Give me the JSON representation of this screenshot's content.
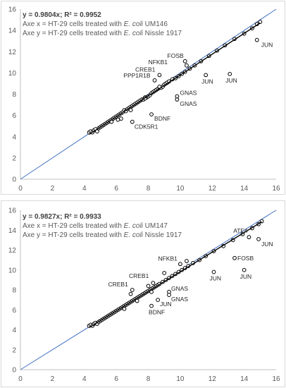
{
  "chart_data": [
    {
      "type": "scatter",
      "equation": "y = 0.9804x; R² = 0.9952",
      "axis_x_note_prefix": "Axe x = HT-29 cells treated with ",
      "axis_x_note_italic": "E. coli",
      "axis_x_note_suffix": " UM146",
      "axis_y_note_prefix": "Axe y = HT-29 cells treated with ",
      "axis_y_note_italic": "E. coli",
      "axis_y_note_suffix": " Nissle 1917",
      "xlim": [
        0,
        16
      ],
      "ylim": [
        0,
        16
      ],
      "xticks": [
        "0",
        "2",
        "4",
        "6",
        "8",
        "10",
        "12",
        "14",
        "16"
      ],
      "yticks": [
        "0",
        "2",
        "4",
        "6",
        "8",
        "10",
        "12",
        "14",
        "16"
      ],
      "identity_line": true,
      "trendline_slope": 0.9804,
      "grid": false,
      "points": [
        [
          4.3,
          4.4
        ],
        [
          4.4,
          4.5
        ],
        [
          4.5,
          4.4
        ],
        [
          4.6,
          4.6
        ],
        [
          4.7,
          4.7
        ],
        [
          4.8,
          4.5
        ],
        [
          4.9,
          4.8
        ],
        [
          5.0,
          4.9
        ],
        [
          5.1,
          5.0
        ],
        [
          5.2,
          5.1
        ],
        [
          5.3,
          5.2
        ],
        [
          5.4,
          5.3
        ],
        [
          5.5,
          5.4
        ],
        [
          5.6,
          5.5
        ],
        [
          5.7,
          5.6
        ],
        [
          5.8,
          5.7
        ],
        [
          5.9,
          5.8
        ],
        [
          6.0,
          5.9
        ],
        [
          6.1,
          6.0
        ],
        [
          6.2,
          6.1
        ],
        [
          6.3,
          6.2
        ],
        [
          6.4,
          6.3
        ],
        [
          6.5,
          6.5
        ],
        [
          6.6,
          6.4
        ],
        [
          6.7,
          6.6
        ],
        [
          6.8,
          6.7
        ],
        [
          6.9,
          6.8
        ],
        [
          7.0,
          6.9
        ],
        [
          7.1,
          7.0
        ],
        [
          7.2,
          7.1
        ],
        [
          7.3,
          7.2
        ],
        [
          7.4,
          7.3
        ],
        [
          7.5,
          7.4
        ],
        [
          7.6,
          7.5
        ],
        [
          7.7,
          7.5
        ],
        [
          7.8,
          7.7
        ],
        [
          7.9,
          7.7
        ],
        [
          8.0,
          7.8
        ],
        [
          8.1,
          7.9
        ],
        [
          8.2,
          8.1
        ],
        [
          8.3,
          8.2
        ],
        [
          8.4,
          8.3
        ],
        [
          8.5,
          8.4
        ],
        [
          8.6,
          8.5
        ],
        [
          8.7,
          8.6
        ],
        [
          8.8,
          8.6
        ],
        [
          8.9,
          8.7
        ],
        [
          9.0,
          8.9
        ],
        [
          9.1,
          9.0
        ],
        [
          9.2,
          9.1
        ],
        [
          9.3,
          9.2
        ],
        [
          9.5,
          9.4
        ],
        [
          9.7,
          9.5
        ],
        [
          9.9,
          9.7
        ],
        [
          10.1,
          9.9
        ],
        [
          10.3,
          10.1
        ],
        [
          10.6,
          10.4
        ],
        [
          10.9,
          10.7
        ],
        [
          11.3,
          11.1
        ],
        [
          11.8,
          11.6
        ],
        [
          12.3,
          12.1
        ],
        [
          12.8,
          12.6
        ],
        [
          13.4,
          13.2
        ],
        [
          14.0,
          13.7
        ],
        [
          14.5,
          14.2
        ],
        [
          14.8,
          14.6
        ],
        [
          15.0,
          14.8
        ],
        [
          6.3,
          5.7
        ],
        [
          5.7,
          5.4
        ],
        [
          7.8,
          7.6
        ],
        [
          8.7,
          8.7
        ],
        [
          6.9,
          6.5
        ],
        [
          6.1,
          5.6
        ],
        [
          10.4,
          10.7
        ],
        [
          8.2,
          6.1
        ],
        [
          7.0,
          5.4
        ],
        [
          8.4,
          9.3
        ],
        [
          8.7,
          9.8
        ],
        [
          10.3,
          11.1
        ],
        [
          9.8,
          7.5
        ],
        [
          9.8,
          7.8
        ],
        [
          11.6,
          9.8
        ],
        [
          13.1,
          9.9
        ],
        [
          14.8,
          13.1
        ]
      ],
      "labels": [
        {
          "text": "FOSB",
          "x": 10.3,
          "y": 11.1
        },
        {
          "text": "NFKB1",
          "x": 9.3,
          "y": 10.5
        },
        {
          "text": "JUN",
          "x": 11.6,
          "y": 9.8
        },
        {
          "text": "JUN",
          "x": 13.1,
          "y": 9.9
        },
        {
          "text": "JUN",
          "x": 14.8,
          "y": 13.1
        },
        {
          "text": "CREB1",
          "x": 8.7,
          "y": 9.8
        },
        {
          "text": "PPP1R1B",
          "x": 8.4,
          "y": 9.3
        },
        {
          "text": "GNAS",
          "x": 9.8,
          "y": 7.8
        },
        {
          "text": "GNAS",
          "x": 9.8,
          "y": 7.5
        },
        {
          "text": "BDNF",
          "x": 8.2,
          "y": 6.1
        },
        {
          "text": "CDK5R1",
          "x": 7.0,
          "y": 5.4
        }
      ]
    },
    {
      "type": "scatter",
      "equation": "y = 0.9827x; R² = 0.9933",
      "axis_x_note_prefix": "Axe x = HT-29 cells treated with ",
      "axis_x_note_italic": "E. coli",
      "axis_x_note_suffix": " UM147",
      "axis_y_note_prefix": "Axe y = HT-29 cells treated with ",
      "axis_y_note_italic": "E. coli",
      "axis_y_note_suffix": " Nissle 1917",
      "xlim": [
        0,
        16
      ],
      "ylim": [
        0,
        16
      ],
      "xticks": [
        "0",
        "2",
        "4",
        "6",
        "8",
        "10",
        "12",
        "14",
        "16"
      ],
      "yticks": [
        "0",
        "2",
        "4",
        "6",
        "8",
        "10",
        "12",
        "14",
        "16"
      ],
      "identity_line": true,
      "trendline_slope": 0.9827,
      "grid": false,
      "points": [
        [
          4.3,
          4.4
        ],
        [
          4.4,
          4.5
        ],
        [
          4.5,
          4.4
        ],
        [
          4.6,
          4.6
        ],
        [
          4.7,
          4.7
        ],
        [
          4.8,
          4.6
        ],
        [
          4.9,
          4.8
        ],
        [
          5.0,
          4.9
        ],
        [
          5.1,
          5.0
        ],
        [
          5.2,
          5.1
        ],
        [
          5.3,
          5.2
        ],
        [
          5.4,
          5.3
        ],
        [
          5.5,
          5.4
        ],
        [
          5.6,
          5.5
        ],
        [
          5.7,
          5.6
        ],
        [
          5.8,
          5.7
        ],
        [
          5.9,
          5.8
        ],
        [
          6.0,
          5.9
        ],
        [
          6.1,
          6.0
        ],
        [
          6.2,
          6.1
        ],
        [
          6.3,
          6.2
        ],
        [
          6.4,
          6.3
        ],
        [
          6.5,
          6.4
        ],
        [
          6.6,
          6.5
        ],
        [
          6.7,
          6.6
        ],
        [
          6.8,
          6.7
        ],
        [
          6.9,
          6.8
        ],
        [
          7.0,
          6.9
        ],
        [
          7.1,
          7.0
        ],
        [
          7.2,
          7.1
        ],
        [
          7.3,
          7.2
        ],
        [
          7.4,
          7.3
        ],
        [
          7.5,
          7.4
        ],
        [
          7.6,
          7.5
        ],
        [
          7.7,
          7.6
        ],
        [
          7.8,
          7.7
        ],
        [
          7.9,
          7.8
        ],
        [
          8.0,
          7.9
        ],
        [
          8.1,
          8.0
        ],
        [
          8.2,
          8.1
        ],
        [
          8.3,
          8.2
        ],
        [
          8.4,
          8.3
        ],
        [
          8.5,
          8.4
        ],
        [
          8.6,
          8.5
        ],
        [
          8.7,
          8.6
        ],
        [
          8.9,
          8.8
        ],
        [
          9.1,
          9.0
        ],
        [
          9.3,
          9.2
        ],
        [
          9.5,
          9.4
        ],
        [
          9.7,
          9.6
        ],
        [
          9.9,
          9.8
        ],
        [
          10.1,
          10.0
        ],
        [
          10.3,
          10.2
        ],
        [
          10.5,
          10.4
        ],
        [
          10.8,
          10.7
        ],
        [
          11.2,
          11.0
        ],
        [
          11.6,
          11.4
        ],
        [
          12.1,
          11.9
        ],
        [
          12.7,
          12.4
        ],
        [
          13.3,
          13.0
        ],
        [
          13.9,
          13.6
        ],
        [
          14.5,
          14.2
        ],
        [
          14.9,
          14.6
        ],
        [
          15.1,
          14.9
        ],
        [
          6.5,
          6.1
        ],
        [
          7.3,
          6.9
        ],
        [
          8.3,
          8.7
        ],
        [
          8.0,
          8.4
        ],
        [
          9.0,
          9.7
        ],
        [
          10.0,
          10.6
        ],
        [
          7.0,
          8.0
        ],
        [
          6.9,
          7.6
        ],
        [
          8.2,
          6.4
        ],
        [
          8.2,
          7.8
        ],
        [
          8.6,
          7.0
        ],
        [
          9.3,
          7.8
        ],
        [
          9.3,
          7.5
        ],
        [
          12.1,
          9.8
        ],
        [
          13.4,
          11.2
        ],
        [
          14.0,
          10.0
        ],
        [
          14.3,
          13.3
        ],
        [
          14.9,
          13.1
        ],
        [
          10.4,
          10.9
        ]
      ],
      "labels": [
        {
          "text": "NFKB1",
          "x": 10.0,
          "y": 10.6
        },
        {
          "text": "ATF4",
          "x": 14.3,
          "y": 13.3
        },
        {
          "text": "JUN",
          "x": 14.9,
          "y": 13.1
        },
        {
          "text": "FOSB",
          "x": 13.4,
          "y": 11.2
        },
        {
          "text": "JUN",
          "x": 12.1,
          "y": 9.8
        },
        {
          "text": "JUN",
          "x": 14.0,
          "y": 10.0
        },
        {
          "text": "CREB1",
          "x": 8.3,
          "y": 8.7
        },
        {
          "text": "CREB1",
          "x": 7.0,
          "y": 8.0
        },
        {
          "text": "GNAS",
          "x": 9.3,
          "y": 7.8
        },
        {
          "text": "GNAS",
          "x": 9.3,
          "y": 7.5
        },
        {
          "text": "JUN",
          "x": 8.6,
          "y": 7.0
        },
        {
          "text": "BDNF",
          "x": 8.2,
          "y": 6.4
        }
      ]
    }
  ]
}
